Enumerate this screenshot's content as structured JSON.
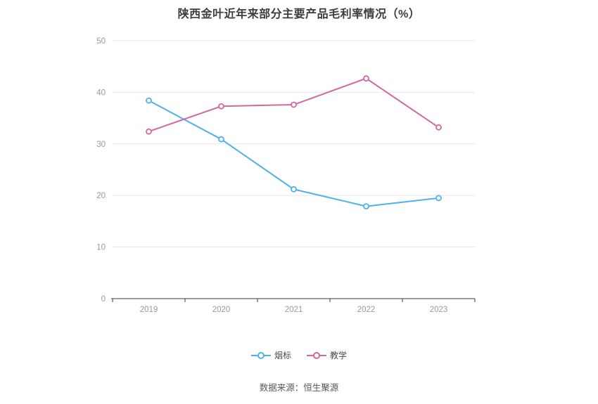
{
  "chart_data": {
    "type": "line",
    "title": "陕西金叶近年来部分主要产品毛利率情况（%）",
    "categories": [
      "2019",
      "2020",
      "2021",
      "2022",
      "2023"
    ],
    "series": [
      {
        "name": "烟标",
        "color": "#4DB1EE",
        "values": [
          38.4,
          30.9,
          21.2,
          17.9,
          19.5
        ]
      },
      {
        "name": "教学",
        "color": "#D3679F",
        "values": [
          32.4,
          37.3,
          37.6,
          42.7,
          33.2
        ]
      }
    ],
    "ylim": [
      0,
      50
    ],
    "yticks": [
      0,
      10,
      20,
      30,
      40,
      50
    ],
    "grid": true,
    "legend_position": "bottom",
    "axis_color": "#3c3c3c",
    "gridline_color": "#e6e6f2",
    "tick_label_color": "#999999"
  },
  "footer": {
    "source": "数据来源：恒生聚源"
  }
}
